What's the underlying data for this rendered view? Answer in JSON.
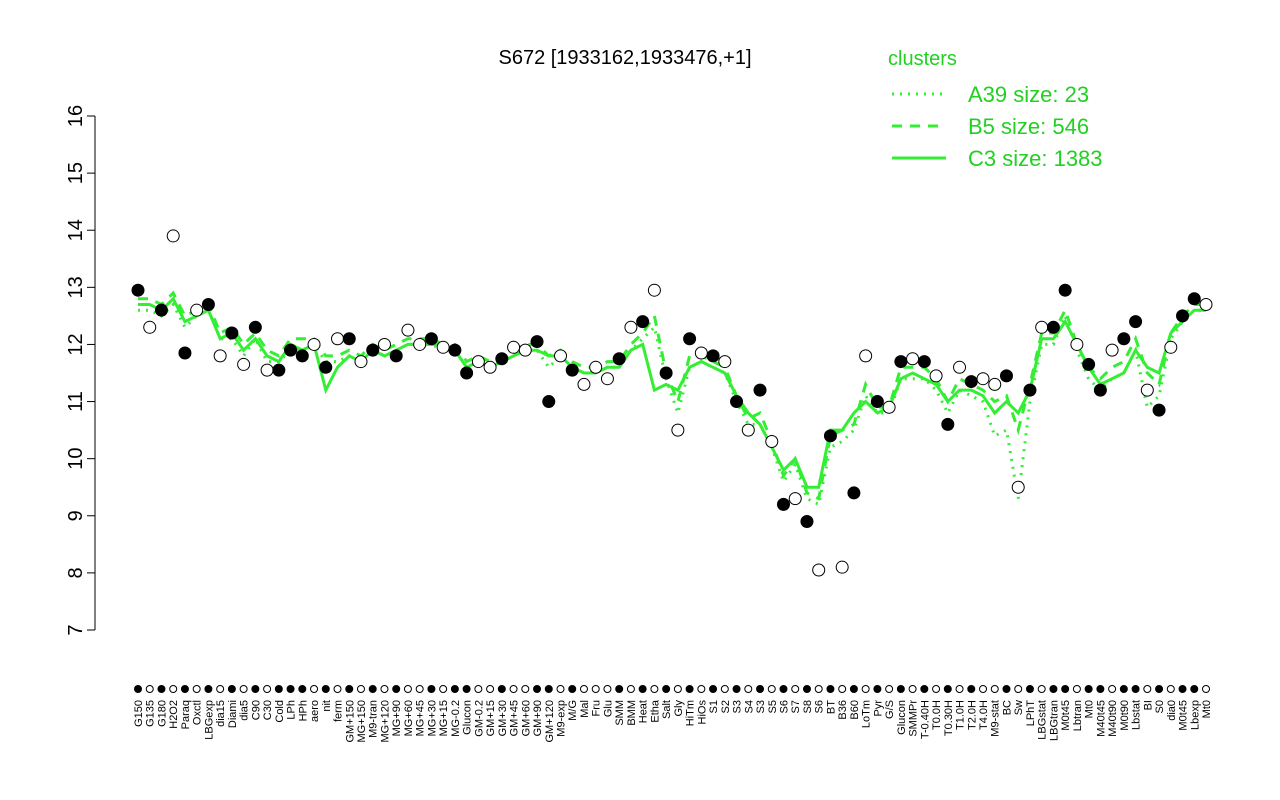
{
  "chart_data": {
    "type": "line",
    "title": "S672 [1933162,1933476,+1]",
    "legend_title": "clusters",
    "legend_color": "#22d022",
    "legend_position": "top-right",
    "ylim": [
      7,
      16
    ],
    "yticks": [
      7,
      8,
      9,
      10,
      11,
      12,
      13,
      14,
      15,
      16
    ],
    "categories": [
      "G150",
      "G135",
      "G180",
      "H2O2",
      "Paraq",
      "Oxctl",
      "LBGexp",
      "dia15",
      "Diami",
      "dia5",
      "C90",
      "C30",
      "Cold",
      "LPh",
      "HPh",
      "aero",
      "nit",
      "ferm",
      "GM+150",
      "MG+150",
      "M9-tran",
      "MG+120",
      "MG+90",
      "MG+60",
      "MG+45",
      "MG+30",
      "MG+15",
      "MG-0.2",
      "Glucon",
      "GM-0.2",
      "GM+15",
      "GM+30",
      "GM+45",
      "GM+60",
      "GM+90",
      "GM+120",
      "M9-exp",
      "M/G",
      "Mal",
      "Fru",
      "Glu",
      "SMM",
      "BMM",
      "Heat",
      "Etha",
      "Salt",
      "Gly",
      "HiTm",
      "HiOs",
      "S1",
      "S2",
      "S3",
      "S4",
      "S3",
      "S5",
      "S6",
      "S7",
      "S8",
      "S6",
      "BT",
      "B36",
      "B60",
      "LoTm",
      "Pyr",
      "G/S",
      "Glucon",
      "SMMPr",
      "T-0.40H",
      "T0.0H",
      "T0.30H",
      "T1.0H",
      "T2.0H",
      "T4.0H",
      "M9-stat",
      "BC",
      "Sw",
      "LPhT",
      "LBGstat",
      "LBGtran",
      "M0t45",
      "Lbtran",
      "Mt0",
      "M40t45",
      "M40t90",
      "M0t90",
      "Lbstat",
      "BI",
      "S0",
      "dia0",
      "M0t45",
      "Lbexp",
      "Mt0"
    ],
    "points": {
      "values": [
        12.95,
        12.3,
        12.6,
        13.9,
        11.85,
        12.6,
        12.7,
        11.8,
        12.2,
        11.65,
        12.3,
        11.55,
        11.55,
        11.9,
        11.8,
        12.0,
        11.6,
        12.1,
        12.1,
        11.7,
        11.9,
        12.0,
        11.8,
        12.25,
        12.0,
        12.1,
        11.95,
        11.9,
        11.5,
        11.7,
        11.6,
        11.75,
        11.95,
        11.9,
        12.05,
        11.0,
        11.8,
        11.55,
        11.3,
        11.6,
        11.4,
        11.75,
        12.3,
        12.4,
        12.95,
        11.5,
        10.5,
        12.1,
        11.85,
        11.8,
        11.7,
        11.0,
        10.5,
        11.2,
        10.3,
        9.2,
        9.3,
        8.9,
        8.05,
        10.4,
        8.1,
        9.4,
        11.8,
        11.0,
        10.9,
        11.7,
        11.75,
        11.7,
        11.45,
        10.6,
        11.6,
        11.35,
        11.4,
        11.3,
        11.45,
        9.5,
        11.2,
        12.3,
        12.3,
        12.95,
        12.0,
        11.65,
        11.2,
        11.9,
        12.1,
        12.4,
        11.2,
        10.85,
        11.95,
        12.5,
        12.8,
        12.7
      ],
      "filled": [
        1,
        0,
        1,
        0,
        1,
        0,
        1,
        0,
        1,
        0,
        1,
        0,
        1,
        1,
        1,
        0,
        1,
        0,
        1,
        0,
        1,
        0,
        1,
        0,
        0,
        1,
        0,
        1,
        1,
        0,
        0,
        1,
        0,
        0,
        1,
        1,
        0,
        1,
        0,
        0,
        0,
        1,
        0,
        1,
        0,
        1,
        0,
        1,
        0,
        1,
        0,
        1,
        0,
        1,
        0,
        1,
        0,
        1,
        0,
        1,
        0,
        1,
        0,
        1,
        0,
        1,
        0,
        1,
        0,
        1,
        0,
        1,
        0,
        0,
        1,
        0,
        1,
        0,
        1,
        1,
        0,
        1,
        1,
        0,
        1,
        1,
        0,
        1,
        0,
        1,
        1,
        0
      ]
    },
    "series": [
      {
        "name": "A39 size: 23",
        "color": "#33ee33",
        "style": "dotted",
        "values": [
          12.6,
          12.6,
          12.5,
          12.7,
          12.3,
          12.5,
          12.6,
          12.1,
          12.1,
          11.8,
          12.1,
          11.7,
          11.7,
          11.9,
          11.9,
          12.0,
          11.7,
          11.7,
          11.8,
          11.7,
          11.9,
          11.8,
          11.9,
          12.0,
          12.0,
          12.0,
          11.9,
          11.9,
          11.6,
          11.7,
          11.6,
          11.7,
          11.8,
          11.9,
          11.9,
          11.6,
          11.8,
          11.6,
          11.5,
          11.5,
          11.6,
          11.6,
          11.9,
          12.1,
          12.3,
          11.4,
          10.8,
          11.6,
          11.7,
          11.6,
          11.5,
          11.0,
          10.6,
          10.6,
          10.2,
          9.6,
          9.9,
          9.3,
          9.2,
          10.2,
          10.3,
          10.5,
          11.1,
          10.8,
          10.8,
          11.4,
          11.4,
          11.4,
          11.2,
          10.8,
          11.2,
          11.1,
          11.0,
          10.4,
          10.5,
          9.3,
          11.0,
          12.0,
          12.0,
          12.5,
          11.9,
          11.4,
          11.2,
          11.4,
          11.5,
          11.9,
          10.9,
          11.1,
          12.1,
          12.4,
          12.6,
          12.6
        ]
      },
      {
        "name": "B5 size: 546",
        "color": "#33ee33",
        "style": "dashed",
        "values": [
          12.8,
          12.8,
          12.7,
          12.9,
          12.5,
          12.6,
          12.7,
          12.2,
          12.3,
          12.0,
          12.2,
          11.9,
          11.8,
          12.1,
          12.1,
          12.1,
          11.8,
          11.8,
          11.9,
          11.8,
          12.0,
          11.9,
          12.0,
          12.1,
          12.1,
          12.1,
          12.0,
          12.0,
          11.7,
          11.8,
          11.7,
          11.8,
          11.9,
          12.0,
          12.0,
          11.8,
          11.9,
          11.7,
          11.6,
          11.6,
          11.7,
          11.7,
          12.0,
          12.2,
          12.5,
          11.5,
          11.0,
          11.8,
          11.8,
          11.7,
          11.6,
          11.1,
          10.7,
          10.8,
          10.3,
          9.7,
          10.0,
          9.4,
          9.3,
          10.4,
          10.5,
          10.6,
          11.3,
          10.9,
          10.9,
          11.6,
          11.6,
          11.6,
          11.4,
          11.0,
          11.4,
          11.3,
          11.2,
          11.0,
          11.1,
          10.5,
          11.3,
          12.2,
          12.2,
          12.6,
          12.0,
          11.6,
          11.4,
          11.6,
          11.7,
          12.1,
          11.5,
          11.3,
          12.2,
          12.5,
          12.7,
          12.7
        ]
      },
      {
        "name": "C3 size: 1383",
        "color": "#33ee33",
        "style": "solid",
        "values": [
          12.7,
          12.7,
          12.6,
          12.8,
          12.4,
          12.5,
          12.6,
          12.1,
          12.2,
          11.9,
          12.1,
          11.8,
          11.7,
          12.0,
          11.9,
          12.0,
          11.2,
          11.6,
          11.8,
          11.7,
          11.9,
          11.8,
          11.9,
          12.0,
          12.0,
          12.0,
          12.0,
          11.9,
          11.6,
          11.7,
          11.6,
          11.7,
          11.8,
          11.9,
          11.9,
          11.8,
          11.8,
          11.6,
          11.5,
          11.5,
          11.6,
          11.6,
          11.9,
          12.0,
          11.2,
          11.3,
          11.2,
          11.6,
          11.7,
          11.6,
          11.5,
          11.1,
          10.8,
          10.6,
          10.2,
          9.8,
          10.0,
          9.5,
          9.5,
          10.5,
          10.5,
          10.8,
          11.0,
          10.8,
          10.9,
          11.4,
          11.5,
          11.4,
          11.3,
          11.0,
          11.2,
          11.2,
          11.1,
          10.8,
          11.0,
          10.8,
          11.2,
          12.1,
          12.1,
          12.4,
          12.0,
          11.6,
          11.3,
          11.4,
          11.5,
          11.9,
          11.6,
          11.5,
          12.2,
          12.4,
          12.6,
          12.6
        ]
      }
    ]
  }
}
